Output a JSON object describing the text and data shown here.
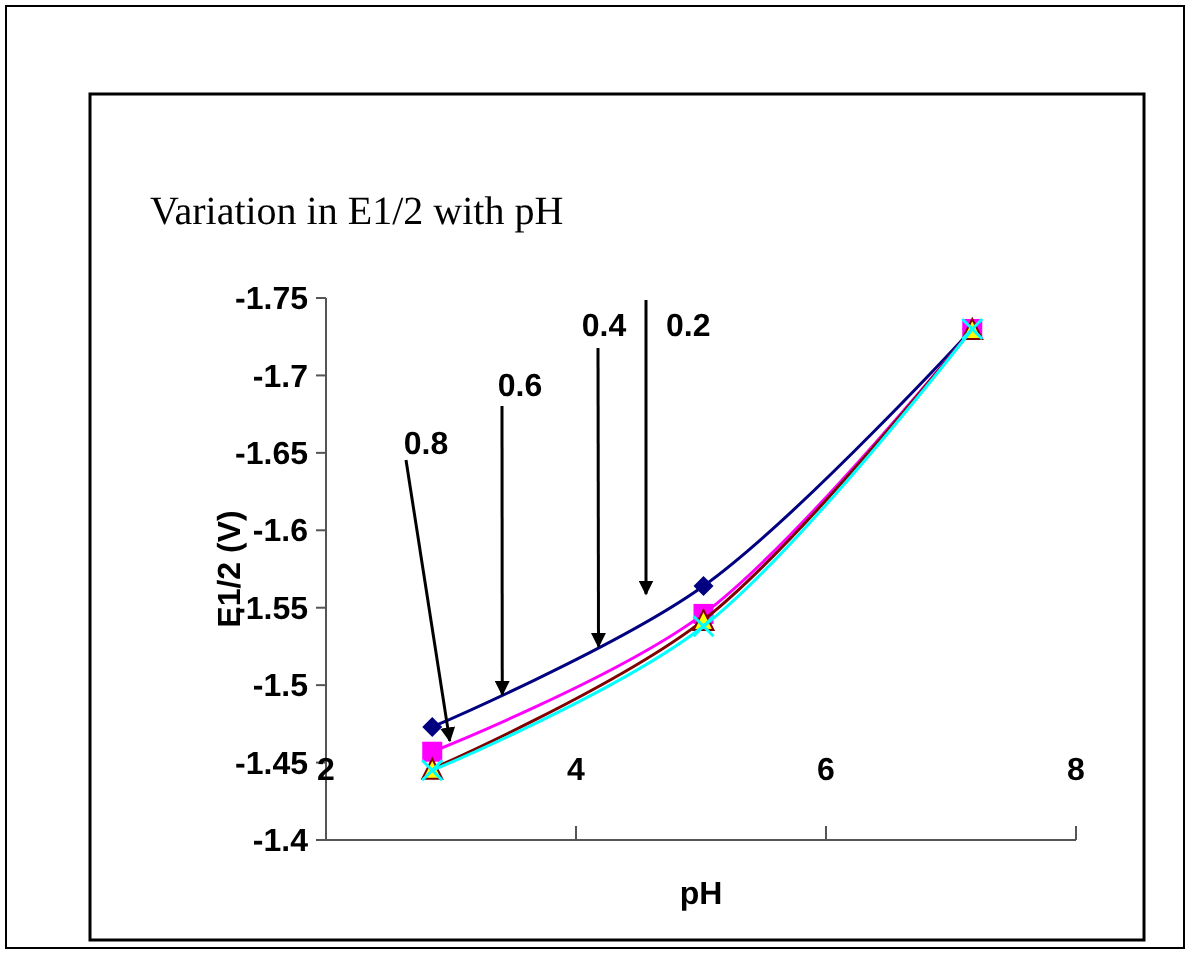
{
  "chart_data": {
    "type": "line",
    "title": "Variation in E1/2 with pH",
    "xlabel": "pH",
    "ylabel": "E1/2 (V)",
    "x": [
      2.85,
      5.02,
      7.17
    ],
    "xlim": [
      2,
      8
    ],
    "xticks": [
      2,
      4,
      6,
      8
    ],
    "ylim": [
      -1.4,
      -1.75
    ],
    "yticks": [
      -1.4,
      -1.45,
      -1.5,
      -1.55,
      -1.6,
      -1.65,
      -1.7,
      -1.75
    ],
    "series": [
      {
        "color": "#000080",
        "marker": "diamond",
        "values": [
          -1.473,
          -1.564,
          -1.73
        ]
      },
      {
        "color": "#ff00ff",
        "marker": "square",
        "values": [
          -1.457,
          -1.546,
          -1.73
        ]
      },
      {
        "color": "#800000",
        "marker": "triangle",
        "values": [
          -1.446,
          -1.542,
          -1.73
        ]
      },
      {
        "color": "#00ffff",
        "marker": "cross",
        "values": [
          -1.445,
          -1.538,
          -1.73
        ]
      }
    ],
    "annotations": [
      "0.2",
      {
        "text": "0.4",
        "x": 4.18,
        "y": -1.525
      },
      {
        "text": "0.6",
        "x": 3.41,
        "y": -1.494
      },
      {
        "text": "0.8",
        "x": 2.99,
        "y": -1.464
      }
    ],
    "grid": false,
    "line_style": "solid"
  }
}
